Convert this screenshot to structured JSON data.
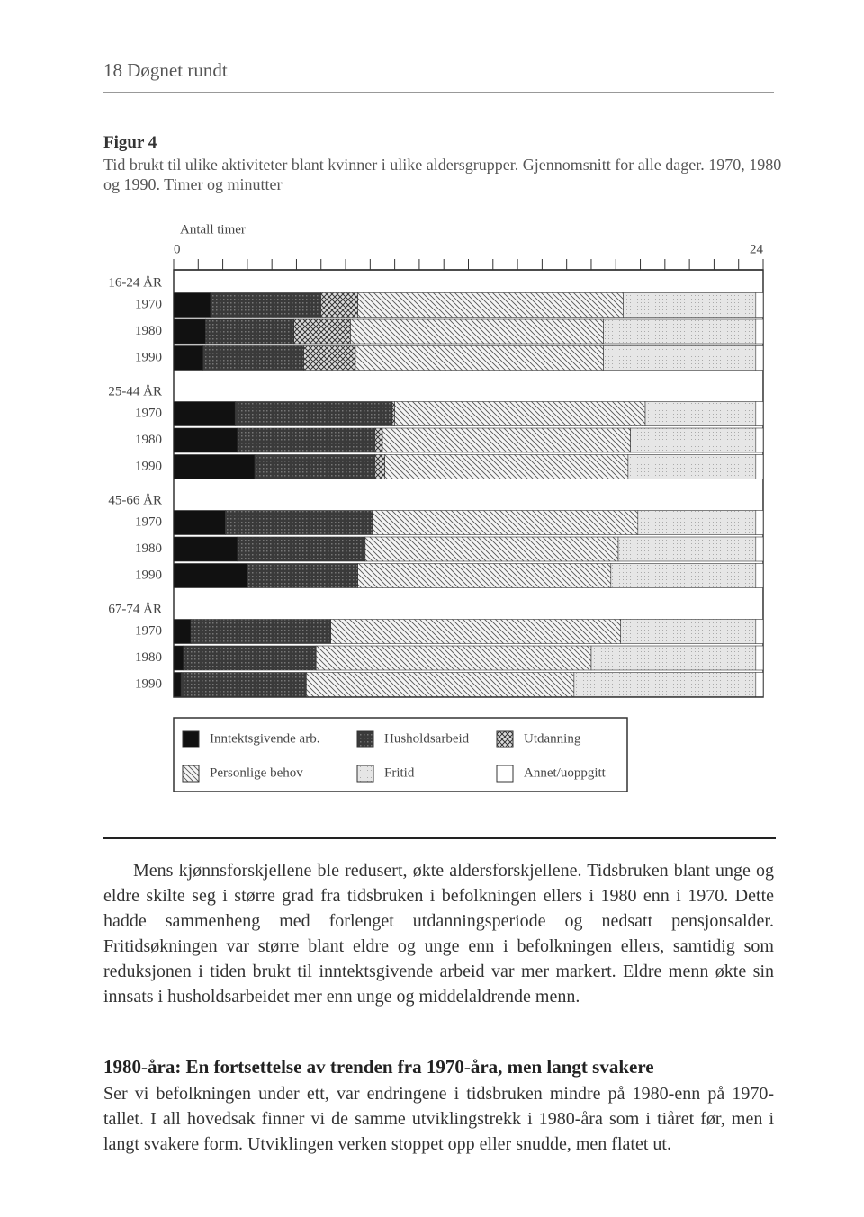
{
  "header": {
    "page_title": "18 Døgnet rundt"
  },
  "figure": {
    "label": "Figur 4",
    "caption": "Tid brukt til ulike aktiviteter blant kvinner i ulike aldersgrupper. Gjennomsnitt for alle dager. 1970, 1980 og 1990. Timer og minutter"
  },
  "chart_data": {
    "type": "stacked-barh",
    "x_label": "Antall timer",
    "xlim": [
      0,
      24
    ],
    "xticks": [
      0,
      24
    ],
    "minor_xticks": [
      1,
      2,
      3,
      4,
      5,
      6,
      7,
      8,
      9,
      10,
      11,
      12,
      13,
      14,
      15,
      16,
      17,
      18,
      19,
      20,
      21,
      22,
      23
    ],
    "groups": [
      "16-24 ÅR",
      "25-44 ÅR",
      "45-66 ÅR",
      "67-74 ÅR"
    ],
    "categories": [
      "1970",
      "1980",
      "1990",
      "1970",
      "1980",
      "1990",
      "1970",
      "1980",
      "1990",
      "1970",
      "1980",
      "1990"
    ],
    "series": [
      {
        "name": "Inntektsgivende arb.",
        "color": "#111111",
        "pattern": "solid",
        "values": [
          1.5,
          1.3,
          1.2,
          2.5,
          2.6,
          3.3,
          2.1,
          2.6,
          3.0,
          0.7,
          0.4,
          0.3
        ]
      },
      {
        "name": "Husholdsarbeid",
        "color": "#474747",
        "pattern": "dots",
        "values": [
          4.5,
          3.6,
          4.1,
          6.4,
          5.6,
          4.9,
          6.0,
          5.2,
          4.5,
          5.7,
          5.4,
          5.1
        ]
      },
      {
        "name": "Utdanning",
        "color": "#555555",
        "pattern": "cross",
        "values": [
          1.5,
          2.3,
          2.1,
          0.1,
          0.3,
          0.4,
          0,
          0,
          0,
          0,
          0,
          0
        ]
      },
      {
        "name": "Personlige behov",
        "color": "#666666",
        "pattern": "hatch",
        "values": [
          10.8,
          10.3,
          10.1,
          10.2,
          10.1,
          9.9,
          10.8,
          10.3,
          10.3,
          11.8,
          11.2,
          10.9
        ]
      },
      {
        "name": "Fritid",
        "color": "#d9d9d9",
        "pattern": "light",
        "values": [
          5.4,
          6.2,
          6.2,
          4.5,
          5.1,
          5.2,
          4.8,
          5.6,
          5.9,
          5.5,
          6.7,
          7.4
        ]
      },
      {
        "name": "Annet/uoppgitt",
        "color": "#ffffff",
        "pattern": "solid",
        "values": [
          0.3,
          0.3,
          0.3,
          0.3,
          0.3,
          0.3,
          0.3,
          0.3,
          0.3,
          0.3,
          0.3,
          0.3
        ]
      }
    ]
  },
  "body": {
    "paragraph_1": "Mens kjønnsforskjellene ble redusert, økte aldersforskjellene. Tidsbruken blant unge og eldre skilte seg i større grad fra tidsbruken i befolkningen ellers i 1980 enn i 1970. Dette hadde sammenheng med forlenget utdanningsperiode og nedsatt pensjonsalder. Fritidsøkningen var større blant eldre og unge enn i befolkningen ellers, samtidig som reduksjonen i tiden brukt til inntektsgivende arbeid var mer markert. Eldre menn økte sin innsats i husholdsarbeidet mer enn unge og middelaldrende menn.",
    "heading": "1980-åra: En fortsettelse av trenden fra 1970-åra, men langt svakere",
    "paragraph_2": "Ser vi befolkningen under ett, var endringene i tidsbruken mindre på 1980-enn på 1970-tallet. I all hovedsak finner vi de samme utviklingstrekk i 1980-åra som i tiåret før, men i langt svakere form. Utviklingen verken stoppet opp eller snudde, men flatet ut."
  }
}
